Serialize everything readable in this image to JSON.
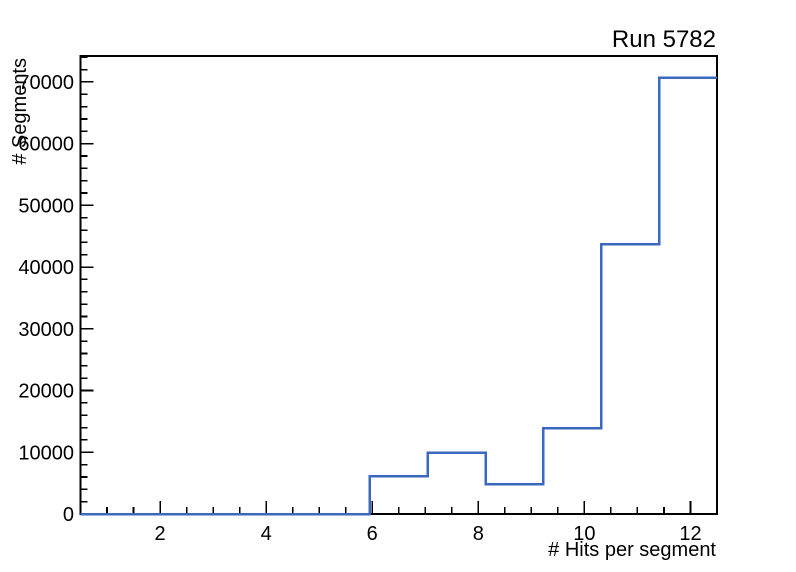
{
  "window": {
    "background": "#ffffff"
  },
  "chart_data": {
    "type": "histogram",
    "title": "Run 5782",
    "xlabel": "# Hits per segment",
    "ylabel": "# Segments",
    "xlim": [
      0.5,
      12.5
    ],
    "ylim": [
      0,
      74200
    ],
    "bin_edges": [
      0.5,
      1.5909,
      2.6818,
      3.7727,
      4.8636,
      5.9545,
      7.0455,
      8.1364,
      9.2273,
      10.3182,
      11.4091,
      12.5
    ],
    "counts": [
      0,
      0,
      0,
      0,
      0,
      6100,
      9900,
      4850,
      13900,
      43700,
      70700
    ],
    "x_major_ticks": [
      2,
      4,
      6,
      8,
      10,
      12
    ],
    "x_tick_labels": [
      "2",
      "4",
      "6",
      "8",
      "10",
      "12"
    ],
    "x_minor_tick_step": 0.5,
    "y_major_ticks": [
      0,
      10000,
      20000,
      30000,
      40000,
      50000,
      60000,
      70000
    ],
    "y_tick_labels": [
      "0",
      "10000",
      "20000",
      "30000",
      "40000",
      "50000",
      "60000",
      "70000"
    ],
    "y_minor_tick_step": 2000,
    "line_color": "#3a6abf",
    "axis_color": "#000000",
    "grid": false,
    "legend_position": "none"
  }
}
